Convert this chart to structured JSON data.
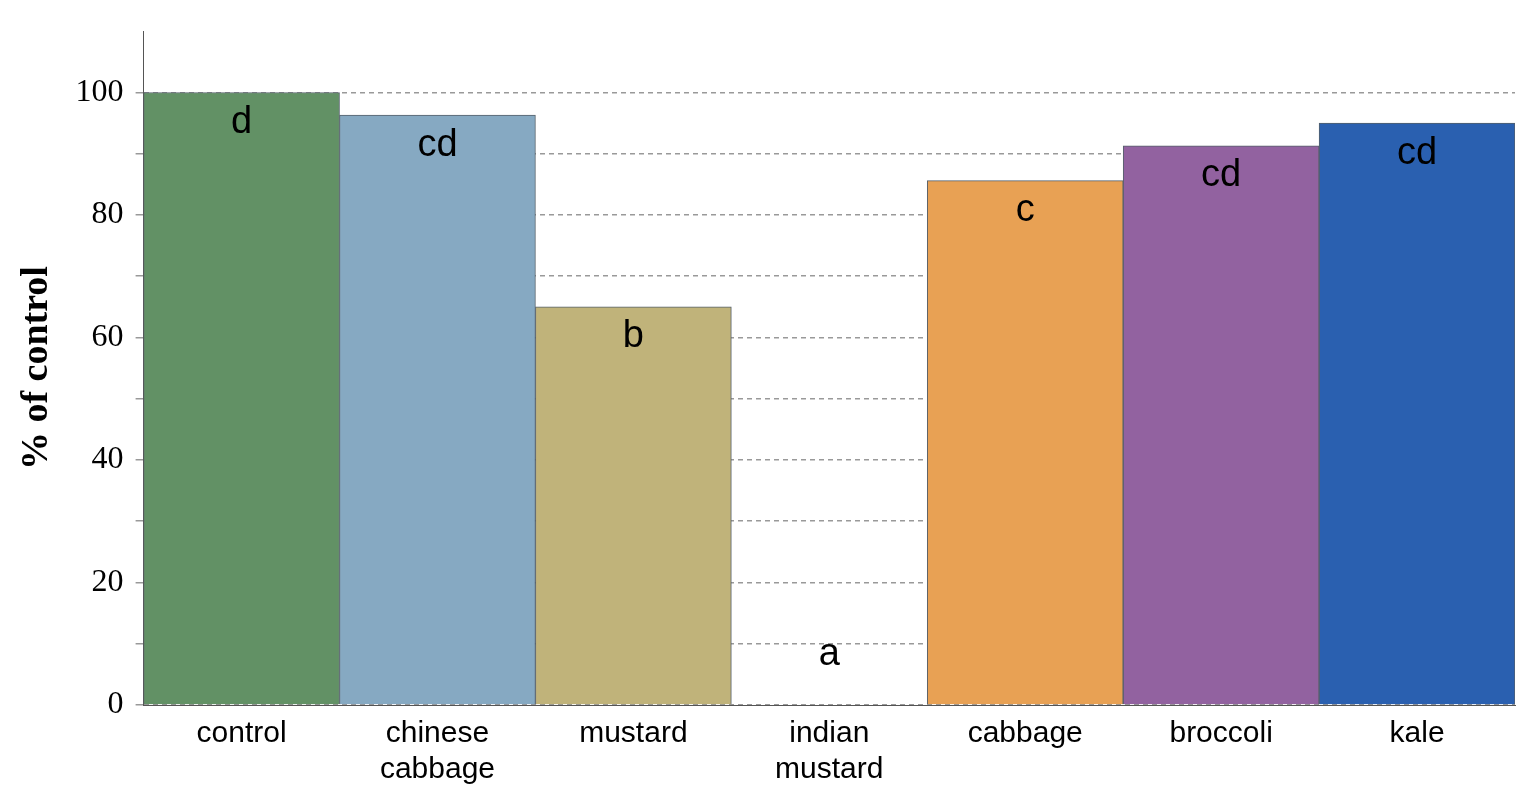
{
  "chart_data": {
    "type": "bar",
    "ylabel": "% of control",
    "categories": [
      "control",
      "chinese cabbage",
      "mustard",
      "indian mustard",
      "cabbage",
      "broccoli",
      "kale"
    ],
    "values": [
      100,
      96.3,
      65,
      0,
      85.6,
      91.3,
      95
    ],
    "colors": [
      "#629165",
      "#86a9c2",
      "#c0b37a",
      "#ffffff",
      "#e8a154",
      "#9262a0",
      "#2a60b0"
    ],
    "value_labels": [
      "d",
      "cd",
      "b",
      "a",
      "c",
      "cd",
      "cd"
    ],
    "ylim": [
      0,
      110
    ],
    "yticks": [
      0,
      {
        "value": 10,
        "label": null
      },
      20,
      {
        "value": 30,
        "label": null
      },
      40,
      {
        "value": 50,
        "label": null
      },
      60,
      {
        "value": 70,
        "label": null
      },
      80,
      {
        "value": 90,
        "label": null
      },
      100
    ],
    "grid": "y",
    "legend": false
  }
}
